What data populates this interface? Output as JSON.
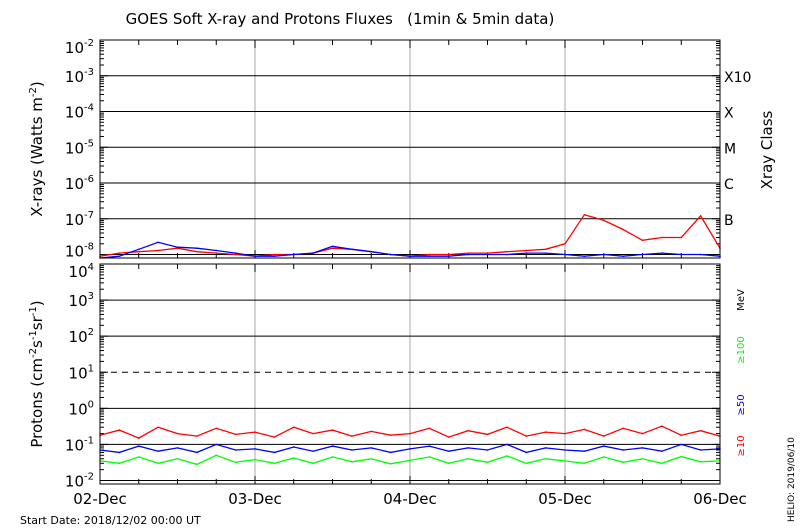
{
  "title": "GOES Soft X-ray and Protons Fluxes   (1min & 5min data)",
  "start_date": "Start Date: 2018/12/02 00:00 UT",
  "helio_stamp": "HELIO: 2019/06/10",
  "colors": {
    "red": "#ff0000",
    "blue": "#0000ff",
    "green": "#00ff00",
    "grid": "#000000",
    "day_grid": "#aaaaaa"
  },
  "x_ticks": [
    "02-Dec",
    "03-Dec",
    "04-Dec",
    "05-Dec",
    "06-Dec"
  ],
  "chart_data": [
    {
      "type": "line",
      "ylabel": "X-rays (Watts m^-2)",
      "ylabel_parts": {
        "main": "X-rays (Watts m",
        "exp": "-2",
        "close": ")"
      },
      "yscale": "log",
      "ylim": [
        8e-09,
        0.01
      ],
      "y_tick_base": "10",
      "y_tick_exps": [
        "-2",
        "-3",
        "-4",
        "-5",
        "-6",
        "-7",
        "-8"
      ],
      "right_label": "Xray Class",
      "class_labels": [
        {
          "label": "X10",
          "level": 0.001
        },
        {
          "label": "X",
          "level": 0.0001
        },
        {
          "label": "M",
          "level": 1e-05
        },
        {
          "label": "C",
          "level": 1e-06
        },
        {
          "label": "B",
          "level": 1e-07
        }
      ],
      "x": [
        "12-02 00:00",
        "12-02 03:00",
        "12-02 06:00",
        "12-02 09:00",
        "12-02 12:00",
        "12-02 15:00",
        "12-02 18:00",
        "12-02 21:00",
        "12-03 00:00",
        "12-03 03:00",
        "12-03 06:00",
        "12-03 09:00",
        "12-03 12:00",
        "12-03 15:00",
        "12-03 18:00",
        "12-03 21:00",
        "12-04 00:00",
        "12-04 03:00",
        "12-04 06:00",
        "12-04 09:00",
        "12-04 12:00",
        "12-04 15:00",
        "12-04 18:00",
        "12-04 21:00",
        "12-05 00:00",
        "12-05 03:00",
        "12-05 06:00",
        "12-05 09:00",
        "12-05 12:00",
        "12-05 15:00",
        "12-05 18:00",
        "12-05 21:00",
        "12-06 00:00"
      ],
      "series": [
        {
          "color": "red",
          "values": [
            9e-09,
            1.1e-08,
            1.2e-08,
            1.3e-08,
            1.5e-08,
            1.2e-08,
            1.1e-08,
            1e-08,
            9e-09,
            1e-08,
            1e-08,
            1.1e-08,
            1.5e-08,
            1.4e-08,
            1.2e-08,
            1e-08,
            9e-09,
            1e-08,
            1e-08,
            1.1e-08,
            1.1e-08,
            1.2e-08,
            1.3e-08,
            1.4e-08,
            2e-08,
            1.3e-07,
            9e-08,
            5e-08,
            2.5e-08,
            3e-08,
            3e-08,
            1.2e-07,
            1.5e-08
          ]
        },
        {
          "color": "blue",
          "values": [
            8e-09,
            9e-09,
            1.4e-08,
            2.2e-08,
            1.6e-08,
            1.5e-08,
            1.3e-08,
            1.1e-08,
            9e-09,
            9e-09,
            1e-08,
            1.1e-08,
            1.7e-08,
            1.4e-08,
            1.2e-08,
            1e-08,
            9e-09,
            9e-09,
            9e-09,
            1e-08,
            1e-08,
            1e-08,
            1.1e-08,
            1.1e-08,
            1e-08,
            9e-09,
            1e-08,
            9e-09,
            1e-08,
            1.1e-08,
            1e-08,
            1e-08,
            9e-09
          ]
        }
      ]
    },
    {
      "type": "line",
      "ylabel": "Protons (cm^-2 s^-1 sr^-1)",
      "ylabel_parts": {
        "a": "Protons (cm",
        "e1": "-2",
        "b": "s",
        "e2": "-1",
        "c": "sr",
        "e3": "-1",
        "d": ")"
      },
      "yscale": "log",
      "ylim": [
        0.008,
        10000.0
      ],
      "y_tick_base": "10",
      "y_tick_exps": [
        "4",
        "3",
        "2",
        "1",
        "0",
        "-1",
        "-2"
      ],
      "threshold": 10,
      "unit_label": "MeV",
      "x": "same as X-rays",
      "series": [
        {
          "name": "≥100",
          "color": "green",
          "values": [
            0.035,
            0.03,
            0.045,
            0.03,
            0.04,
            0.028,
            0.05,
            0.032,
            0.038,
            0.03,
            0.042,
            0.03,
            0.045,
            0.033,
            0.04,
            0.029,
            0.036,
            0.045,
            0.03,
            0.04,
            0.032,
            0.048,
            0.03,
            0.04,
            0.035,
            0.03,
            0.045,
            0.032,
            0.04,
            0.03,
            0.046,
            0.033,
            0.035
          ]
        },
        {
          "name": "≥50",
          "color": "blue",
          "values": [
            0.07,
            0.06,
            0.09,
            0.065,
            0.08,
            0.06,
            0.1,
            0.07,
            0.075,
            0.06,
            0.085,
            0.065,
            0.09,
            0.07,
            0.08,
            0.06,
            0.075,
            0.09,
            0.065,
            0.08,
            0.07,
            0.1,
            0.06,
            0.08,
            0.07,
            0.065,
            0.09,
            0.07,
            0.08,
            0.065,
            0.1,
            0.07,
            0.075
          ]
        },
        {
          "name": "≥10",
          "color": "red",
          "values": [
            0.18,
            0.25,
            0.15,
            0.3,
            0.2,
            0.17,
            0.28,
            0.19,
            0.22,
            0.16,
            0.3,
            0.2,
            0.25,
            0.17,
            0.23,
            0.18,
            0.2,
            0.28,
            0.16,
            0.24,
            0.19,
            0.3,
            0.17,
            0.22,
            0.2,
            0.26,
            0.17,
            0.28,
            0.2,
            0.32,
            0.18,
            0.24,
            0.17
          ]
        }
      ]
    }
  ]
}
